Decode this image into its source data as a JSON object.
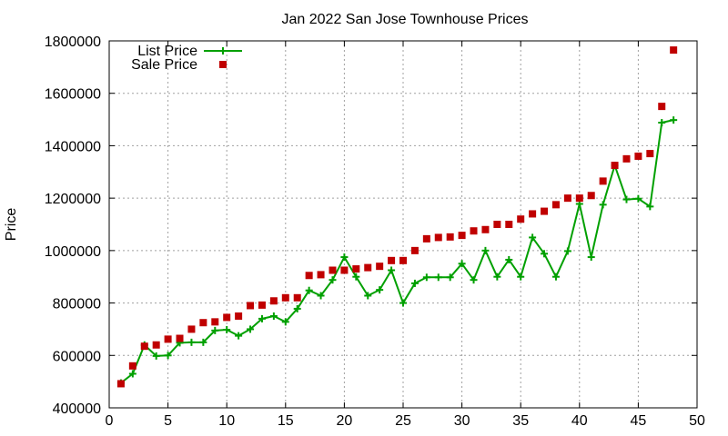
{
  "chart_data": {
    "type": "scatter",
    "title": "Jan 2022 San Jose Townhouse Prices",
    "xlabel": "",
    "ylabel": "Price",
    "xlim": [
      0,
      50
    ],
    "ylim": [
      400000,
      1800000
    ],
    "xticks": [
      0,
      5,
      10,
      15,
      20,
      25,
      30,
      35,
      40,
      45,
      50
    ],
    "yticks": [
      400000,
      600000,
      800000,
      1000000,
      1200000,
      1400000,
      1600000,
      1800000
    ],
    "grid": true,
    "legend_position": "top-left",
    "series": [
      {
        "name": "List Price",
        "style": "line-with-plus-markers",
        "color": "#00a000",
        "x": [
          1,
          2,
          3,
          4,
          5,
          6,
          7,
          8,
          9,
          10,
          11,
          12,
          13,
          14,
          15,
          16,
          17,
          18,
          19,
          20,
          21,
          22,
          23,
          24,
          25,
          26,
          27,
          28,
          29,
          30,
          31,
          32,
          33,
          34,
          35,
          36,
          37,
          38,
          39,
          40,
          41,
          42,
          43,
          44,
          45,
          46,
          47,
          48
        ],
        "y": [
          495000,
          530000,
          640000,
          598000,
          600000,
          648000,
          650000,
          650000,
          695000,
          698000,
          675000,
          700000,
          740000,
          750000,
          728000,
          778000,
          848000,
          828000,
          888000,
          975000,
          900000,
          828000,
          850000,
          925000,
          800000,
          875000,
          898000,
          898000,
          898000,
          950000,
          888000,
          1000000,
          900000,
          965000,
          900000,
          1050000,
          988000,
          900000,
          998000,
          1178000,
          975000,
          1175000,
          1325000,
          1195000,
          1198000,
          1168000,
          1488000,
          1498000
        ]
      },
      {
        "name": "Sale Price",
        "style": "square-markers",
        "color": "#c00000",
        "x": [
          1,
          2,
          3,
          4,
          5,
          6,
          7,
          8,
          9,
          10,
          11,
          12,
          13,
          14,
          15,
          16,
          17,
          18,
          19,
          20,
          21,
          22,
          23,
          24,
          25,
          26,
          27,
          28,
          29,
          30,
          31,
          32,
          33,
          34,
          35,
          36,
          37,
          38,
          39,
          40,
          41,
          42,
          43,
          44,
          45,
          46,
          47,
          48
        ],
        "y": [
          492000,
          560000,
          635000,
          640000,
          662000,
          665000,
          700000,
          725000,
          728000,
          745000,
          750000,
          790000,
          792000,
          808000,
          820000,
          820000,
          905000,
          908000,
          925000,
          925000,
          930000,
          935000,
          940000,
          962000,
          962000,
          1000000,
          1045000,
          1050000,
          1052000,
          1058000,
          1075000,
          1080000,
          1100000,
          1100000,
          1120000,
          1140000,
          1150000,
          1175000,
          1200000,
          1200000,
          1210000,
          1265000,
          1325000,
          1350000,
          1360000,
          1370000,
          1550000,
          1765000
        ]
      }
    ]
  }
}
